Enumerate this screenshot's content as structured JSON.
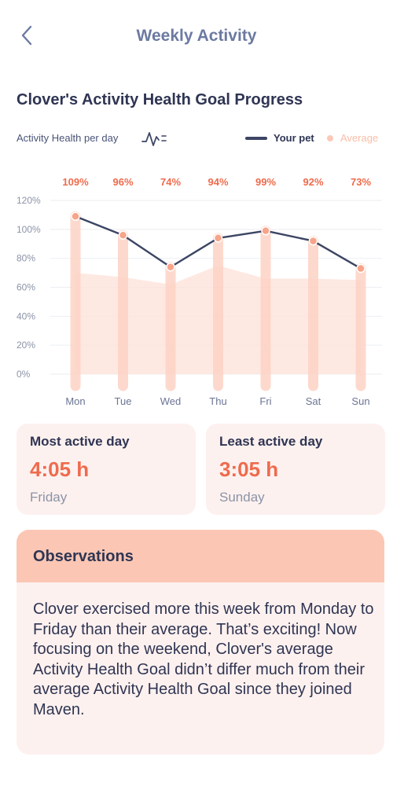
{
  "header": {
    "title": "Weekly Activity"
  },
  "section_title": "Clover's Activity Health Goal Progress",
  "metric_label": "Activity Health per day",
  "legend": {
    "pet": "Your pet",
    "average": "Average"
  },
  "colors": {
    "accent": "#ee6b4d",
    "pet_line": "#3c4563",
    "average_fill": "#fde1d8",
    "bar": "#fdd3c5",
    "card_bg": "#fdf1ef",
    "obs_header": "#fbc7b4"
  },
  "icons": {
    "back": "chevron-left-icon",
    "pulse": "pulse-icon"
  },
  "chart_data": {
    "type": "line",
    "categories": [
      "Mon",
      "Tue",
      "Wed",
      "Thu",
      "Fri",
      "Sat",
      "Sun"
    ],
    "value_labels": [
      "109%",
      "96%",
      "74%",
      "94%",
      "99%",
      "92%",
      "73%"
    ],
    "y_ticks": [
      "0%",
      "20%",
      "40%",
      "60%",
      "80%",
      "100%",
      "120%"
    ],
    "ylim": [
      0,
      120
    ],
    "series": [
      {
        "name": "Your pet",
        "values": [
          109,
          96,
          74,
          94,
          99,
          92,
          73
        ]
      },
      {
        "name": "Average",
        "values": [
          70,
          67,
          62,
          75,
          66,
          66,
          65
        ]
      }
    ],
    "grid": true,
    "legend_position": "top-right"
  },
  "stats": {
    "most": {
      "title": "Most active day",
      "value": "4:05 h",
      "day": "Friday"
    },
    "least": {
      "title": "Least active day",
      "value": "3:05 h",
      "day": "Sunday"
    }
  },
  "observations": {
    "title": "Observations",
    "text": "Clover exercised more this week from Monday to Friday than their average. That’s exciting! Now focusing on the weekend, Clover's average Activity Health Goal didn’t differ much from their average Activity Health Goal since they joined Maven."
  }
}
